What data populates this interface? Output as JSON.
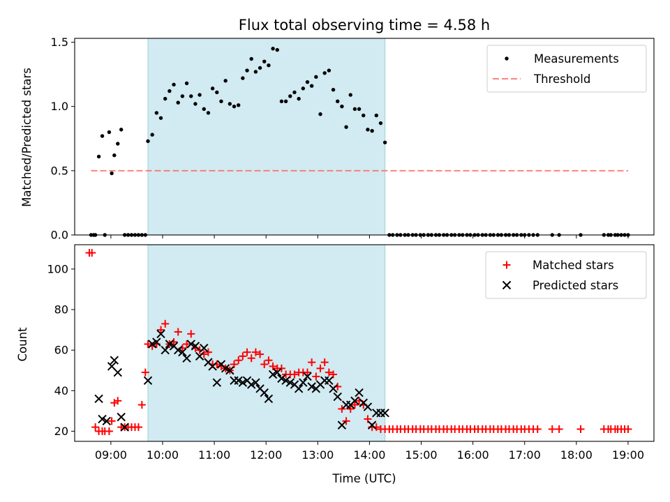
{
  "chart_data": [
    {
      "type": "scatter",
      "title": "Flux total observing time = 4.58 h",
      "xlabel": "",
      "ylabel": "Matched/Predicted stars",
      "ylim": [
        0,
        1.53
      ],
      "yticks": [
        "0.0",
        "0.5",
        "1.0",
        "1.5"
      ],
      "legend": "top-right",
      "grid": false,
      "highlight_span": {
        "x_start": "09:43",
        "x_end": "14:18",
        "color": "#add8e6"
      },
      "threshold": {
        "name": "Threshold",
        "y": 0.5,
        "x_start": "08:37",
        "x_end": "19:00",
        "color": "#ff6b6b"
      },
      "series": [
        {
          "name": "Measurements",
          "color": "#000000",
          "x": [
            "08:37",
            "08:40",
            "08:42",
            "08:46",
            "08:50",
            "08:53",
            "08:58",
            "09:01",
            "09:04",
            "09:08",
            "09:12",
            "09:16",
            "09:20",
            "09:24",
            "09:28",
            "09:32",
            "09:36",
            "09:40",
            "09:43",
            "09:48",
            "09:53",
            "09:58",
            "10:03",
            "10:08",
            "10:13",
            "10:18",
            "10:23",
            "10:28",
            "10:33",
            "10:38",
            "10:43",
            "10:48",
            "10:53",
            "10:58",
            "11:03",
            "11:08",
            "11:13",
            "11:18",
            "11:23",
            "11:28",
            "11:33",
            "11:38",
            "11:43",
            "11:48",
            "11:53",
            "11:58",
            "12:03",
            "12:08",
            "12:13",
            "12:18",
            "12:23",
            "12:28",
            "12:33",
            "12:38",
            "12:43",
            "12:48",
            "12:53",
            "12:58",
            "13:03",
            "13:08",
            "13:13",
            "13:18",
            "13:23",
            "13:28",
            "13:33",
            "13:38",
            "13:43",
            "13:48",
            "13:53",
            "13:58",
            "14:03",
            "14:08",
            "14:13",
            "14:18",
            "14:23",
            "14:27",
            "14:32",
            "14:36",
            "14:41",
            "14:45",
            "14:50",
            "14:54",
            "14:59",
            "15:03",
            "15:08",
            "15:12",
            "15:17",
            "15:21",
            "15:26",
            "15:30",
            "15:35",
            "15:39",
            "15:44",
            "15:48",
            "15:53",
            "15:57",
            "16:02",
            "16:06",
            "16:11",
            "16:15",
            "16:20",
            "16:24",
            "16:29",
            "16:33",
            "16:38",
            "16:42",
            "16:47",
            "16:51",
            "16:56",
            "17:00",
            "17:05",
            "17:10",
            "17:15",
            "17:32",
            "17:40",
            "18:05",
            "18:32",
            "18:37",
            "18:40",
            "18:45",
            "18:48",
            "18:52",
            "18:56",
            "19:00"
          ],
          "y": [
            0,
            0,
            0,
            0.61,
            0.77,
            0,
            0.8,
            0.48,
            0.62,
            0.71,
            0.82,
            0,
            0,
            0,
            0,
            0,
            0,
            0,
            0.73,
            0.78,
            0.95,
            0.91,
            1.06,
            1.12,
            1.17,
            1.03,
            1.08,
            1.18,
            1.08,
            1.02,
            1.09,
            0.98,
            0.95,
            1.14,
            1.11,
            1.04,
            1.2,
            1.02,
            1.0,
            1.01,
            1.22,
            1.28,
            1.37,
            1.27,
            1.3,
            1.35,
            1.32,
            1.45,
            1.44,
            1.04,
            1.04,
            1.08,
            1.11,
            1.06,
            1.14,
            1.19,
            1.16,
            1.23,
            0.94,
            1.26,
            1.28,
            1.13,
            1.04,
            1.0,
            0.84,
            1.09,
            0.98,
            0.98,
            0.93,
            0.82,
            0.81,
            0.93,
            0.87,
            0.72,
            0,
            0,
            0,
            0,
            0,
            0,
            0,
            0,
            0,
            0,
            0,
            0,
            0,
            0,
            0,
            0,
            0,
            0,
            0,
            0,
            0,
            0,
            0,
            0,
            0,
            0,
            0,
            0,
            0,
            0,
            0,
            0,
            0,
            0,
            0,
            0,
            0,
            0,
            0,
            0,
            0,
            0,
            0,
            0,
            0,
            0,
            0,
            0,
            0,
            0
          ]
        }
      ]
    },
    {
      "type": "scatter",
      "title": "",
      "xlabel": "Time (UTC)",
      "ylabel": "Count",
      "ylim": [
        15,
        112
      ],
      "yticks": [
        "20",
        "40",
        "60",
        "80",
        "100"
      ],
      "xlim": [
        "08:18",
        "19:30"
      ],
      "xticks": [
        "09:00",
        "10:00",
        "11:00",
        "12:00",
        "13:00",
        "14:00",
        "15:00",
        "16:00",
        "17:00",
        "18:00",
        "19:00"
      ],
      "legend": "top-right",
      "grid": false,
      "highlight_span": {
        "x_start": "09:43",
        "x_end": "14:18",
        "color": "#add8e6"
      },
      "series": [
        {
          "name": "Matched stars",
          "color": "#ff0000",
          "marker": "plus",
          "x": [
            "08:35",
            "08:38",
            "08:42",
            "08:46",
            "08:50",
            "08:53",
            "08:58",
            "09:01",
            "09:04",
            "09:08",
            "09:12",
            "09:16",
            "09:20",
            "09:24",
            "09:28",
            "09:32",
            "09:36",
            "09:40",
            "09:43",
            "09:48",
            "09:53",
            "09:58",
            "10:03",
            "10:08",
            "10:13",
            "10:18",
            "10:23",
            "10:28",
            "10:33",
            "10:38",
            "10:43",
            "10:48",
            "10:53",
            "10:58",
            "11:03",
            "11:08",
            "11:13",
            "11:18",
            "11:23",
            "11:28",
            "11:33",
            "11:38",
            "11:43",
            "11:48",
            "11:53",
            "11:58",
            "12:03",
            "12:08",
            "12:13",
            "12:18",
            "12:23",
            "12:28",
            "12:33",
            "12:38",
            "12:43",
            "12:48",
            "12:53",
            "12:58",
            "13:03",
            "13:08",
            "13:13",
            "13:18",
            "13:23",
            "13:28",
            "13:33",
            "13:38",
            "13:43",
            "13:48",
            "13:53",
            "13:58",
            "14:03",
            "14:08",
            "14:13",
            "14:18",
            "14:23",
            "14:27",
            "14:32",
            "14:36",
            "14:41",
            "14:45",
            "14:50",
            "14:54",
            "14:59",
            "15:03",
            "15:08",
            "15:12",
            "15:17",
            "15:21",
            "15:26",
            "15:30",
            "15:35",
            "15:39",
            "15:44",
            "15:48",
            "15:53",
            "15:57",
            "16:02",
            "16:06",
            "16:11",
            "16:15",
            "16:20",
            "16:24",
            "16:29",
            "16:33",
            "16:38",
            "16:42",
            "16:47",
            "16:51",
            "16:56",
            "17:00",
            "17:05",
            "17:10",
            "17:15",
            "17:32",
            "17:40",
            "18:05",
            "18:32",
            "18:37",
            "18:40",
            "18:45",
            "18:48",
            "18:52",
            "18:56",
            "19:00"
          ],
          "y": [
            108,
            108,
            22,
            20,
            20,
            20,
            20,
            25,
            34,
            35,
            22,
            22,
            22,
            22,
            22,
            22,
            33,
            49,
            63,
            62,
            63,
            70,
            73,
            63,
            64,
            69,
            61,
            63,
            68,
            61,
            60,
            58,
            59,
            53,
            53,
            52,
            51,
            50,
            53,
            55,
            57,
            59,
            56,
            59,
            58,
            53,
            55,
            52,
            51,
            51,
            48,
            48,
            48,
            49,
            49,
            49,
            54,
            47,
            51,
            54,
            49,
            48,
            42,
            31,
            25,
            31,
            33,
            35,
            33,
            26,
            22,
            22,
            21,
            21,
            21,
            21,
            21,
            21,
            21,
            21,
            21,
            21,
            21,
            21,
            21,
            21,
            21,
            21,
            21,
            21,
            21,
            21,
            21,
            21,
            21,
            21,
            21,
            21,
            21,
            21,
            21,
            21,
            21,
            21,
            21,
            21,
            21,
            21,
            21,
            21,
            21,
            21,
            21,
            21,
            21,
            21,
            21,
            21,
            21,
            21,
            21,
            21,
            21,
            21
          ]
        },
        {
          "name": "Predicted stars",
          "color": "#000000",
          "marker": "cross",
          "x": [
            "08:46",
            "08:50",
            "08:55",
            "09:01",
            "09:04",
            "09:08",
            "09:12",
            "09:16",
            "09:43",
            "09:48",
            "09:53",
            "09:58",
            "10:03",
            "10:08",
            "10:13",
            "10:18",
            "10:23",
            "10:28",
            "10:33",
            "10:38",
            "10:43",
            "10:48",
            "10:53",
            "10:58",
            "11:03",
            "11:08",
            "11:13",
            "11:18",
            "11:23",
            "11:28",
            "11:33",
            "11:38",
            "11:43",
            "11:48",
            "11:53",
            "11:58",
            "12:03",
            "12:08",
            "12:13",
            "12:18",
            "12:23",
            "12:28",
            "12:33",
            "12:38",
            "12:43",
            "12:48",
            "12:53",
            "12:58",
            "13:03",
            "13:08",
            "13:13",
            "13:18",
            "13:23",
            "13:28",
            "13:33",
            "13:38",
            "13:43",
            "13:48",
            "13:53",
            "13:58",
            "14:03",
            "14:08",
            "14:13",
            "14:18"
          ],
          "y": [
            36,
            26,
            25,
            52,
            55,
            49,
            27,
            22,
            45,
            63,
            64,
            68,
            60,
            63,
            62,
            60,
            59,
            56,
            63,
            62,
            57,
            61,
            54,
            52,
            44,
            53,
            51,
            50,
            45,
            45,
            44,
            45,
            43,
            44,
            41,
            39,
            36,
            48,
            49,
            46,
            45,
            44,
            43,
            41,
            44,
            47,
            42,
            41,
            43,
            45,
            45,
            41,
            37,
            23,
            33,
            33,
            35,
            39,
            34,
            32,
            23,
            29,
            29,
            29
          ]
        }
      ]
    }
  ]
}
